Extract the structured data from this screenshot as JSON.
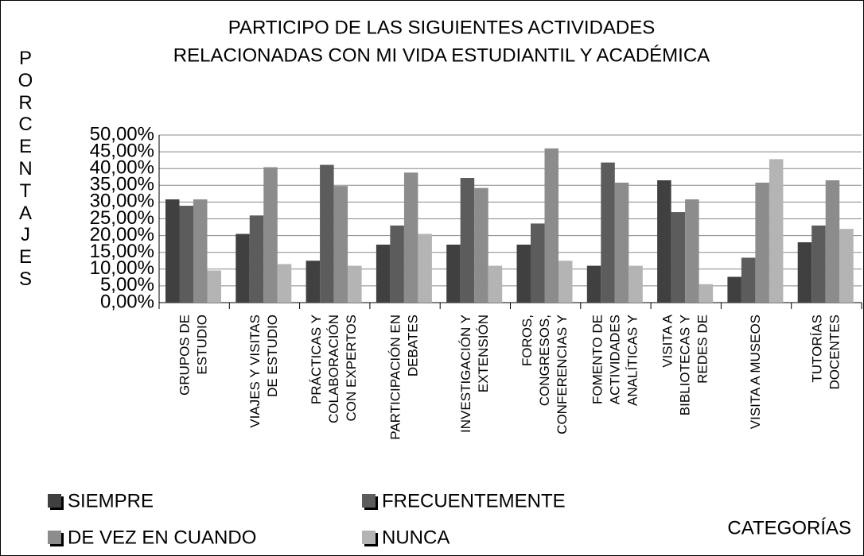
{
  "chart_data": {
    "type": "bar",
    "title": [
      "PARTICIPO DE LAS SIGUIENTES ACTIVIDADES",
      "RELACIONADAS CON MI VIDA ESTUDIANTIL Y ACADÉMICA"
    ],
    "y_label": "PORCENTAJES",
    "x_label": "CATEGORÍAS",
    "categories": [
      [
        "GRUPOS DE",
        "ESTUDIO"
      ],
      [
        "VIAJES Y VISITAS",
        "DE ESTUDIO"
      ],
      [
        "PRÁCTICAS Y",
        "COLABORACIÓN",
        "CON EXPERTOS"
      ],
      [
        "PARTICIPACIÓN EN",
        "DEBATES"
      ],
      [
        "INVESTIGACIÓN Y",
        "EXTENSIÓN"
      ],
      [
        "FOROS,",
        "CONGRESOS,",
        "CONFERENCIAS Y"
      ],
      [
        "FOMENTO DE",
        "ACTIVIDADES",
        "ANALÍTICAS Y"
      ],
      [
        "VISITA A",
        "BIBLIOTECAS Y",
        "REDES DE"
      ],
      [
        "VISITA A MUSEOS"
      ],
      [
        "TUTORÍAS",
        "DOCENTES"
      ]
    ],
    "series": [
      {
        "name": "SIEMPRE",
        "color": "#404040",
        "values": [
          30.8,
          20.5,
          12.5,
          17.3,
          17.3,
          17.3,
          11,
          36.5,
          7.7,
          18
        ]
      },
      {
        "name": "FRECUENTEMENTE",
        "color": "#5c5c5c",
        "values": [
          28.9,
          26,
          41.1,
          23,
          37.2,
          23.6,
          41.8,
          27,
          13.4,
          23
        ]
      },
      {
        "name": "DE VEZ EN CUANDO",
        "color": "#8c8c8c",
        "values": [
          30.8,
          40.4,
          34.8,
          38.8,
          34.2,
          46,
          35.8,
          30.8,
          35.8,
          36.5
        ]
      },
      {
        "name": "NUNCA",
        "color": "#b4b4b4",
        "values": [
          9.6,
          11.5,
          11,
          20.5,
          11,
          12.5,
          11,
          5.5,
          42.8,
          22
        ]
      }
    ],
    "ylim": [
      0,
      50
    ],
    "yticks": [
      {
        "value": 0,
        "label": "0,00%"
      },
      {
        "value": 5,
        "label": "5,00%"
      },
      {
        "value": 10,
        "label": "10,00%"
      },
      {
        "value": 15,
        "label": "15,00%"
      },
      {
        "value": 20,
        "label": "20,00%"
      },
      {
        "value": 25,
        "label": "25,00%"
      },
      {
        "value": 30,
        "label": "30,00%"
      },
      {
        "value": 35,
        "label": "35,00%"
      },
      {
        "value": 40,
        "label": "40,00%"
      },
      {
        "value": 45,
        "label": "45,00%"
      },
      {
        "value": 50,
        "label": "50,00%"
      }
    ],
    "grid": true
  }
}
